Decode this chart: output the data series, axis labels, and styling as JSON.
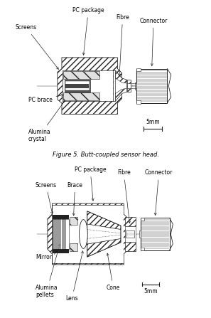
{
  "fig_width": 2.97,
  "fig_height": 4.47,
  "lc": "#222222",
  "fig1_caption": "Figure 5. Butt-coupled sensor head.",
  "diag1": {
    "labels": {
      "screens": "Screens",
      "pc_package": "PC package",
      "fibre": "Fibre",
      "connector": "Connector",
      "pc_brace": "PC brace",
      "alumina_crystal": "Alumina\ncrystal"
    }
  },
  "diag2": {
    "labels": {
      "screens": "Screens",
      "pc_package": "PC package",
      "fibre": "Fibre",
      "connector": "Connector",
      "brace": "Brace",
      "mirror": "Mirror",
      "alumina_pellets": "Alumina\npellets",
      "lens": "Lens",
      "cone": "Cone"
    }
  }
}
